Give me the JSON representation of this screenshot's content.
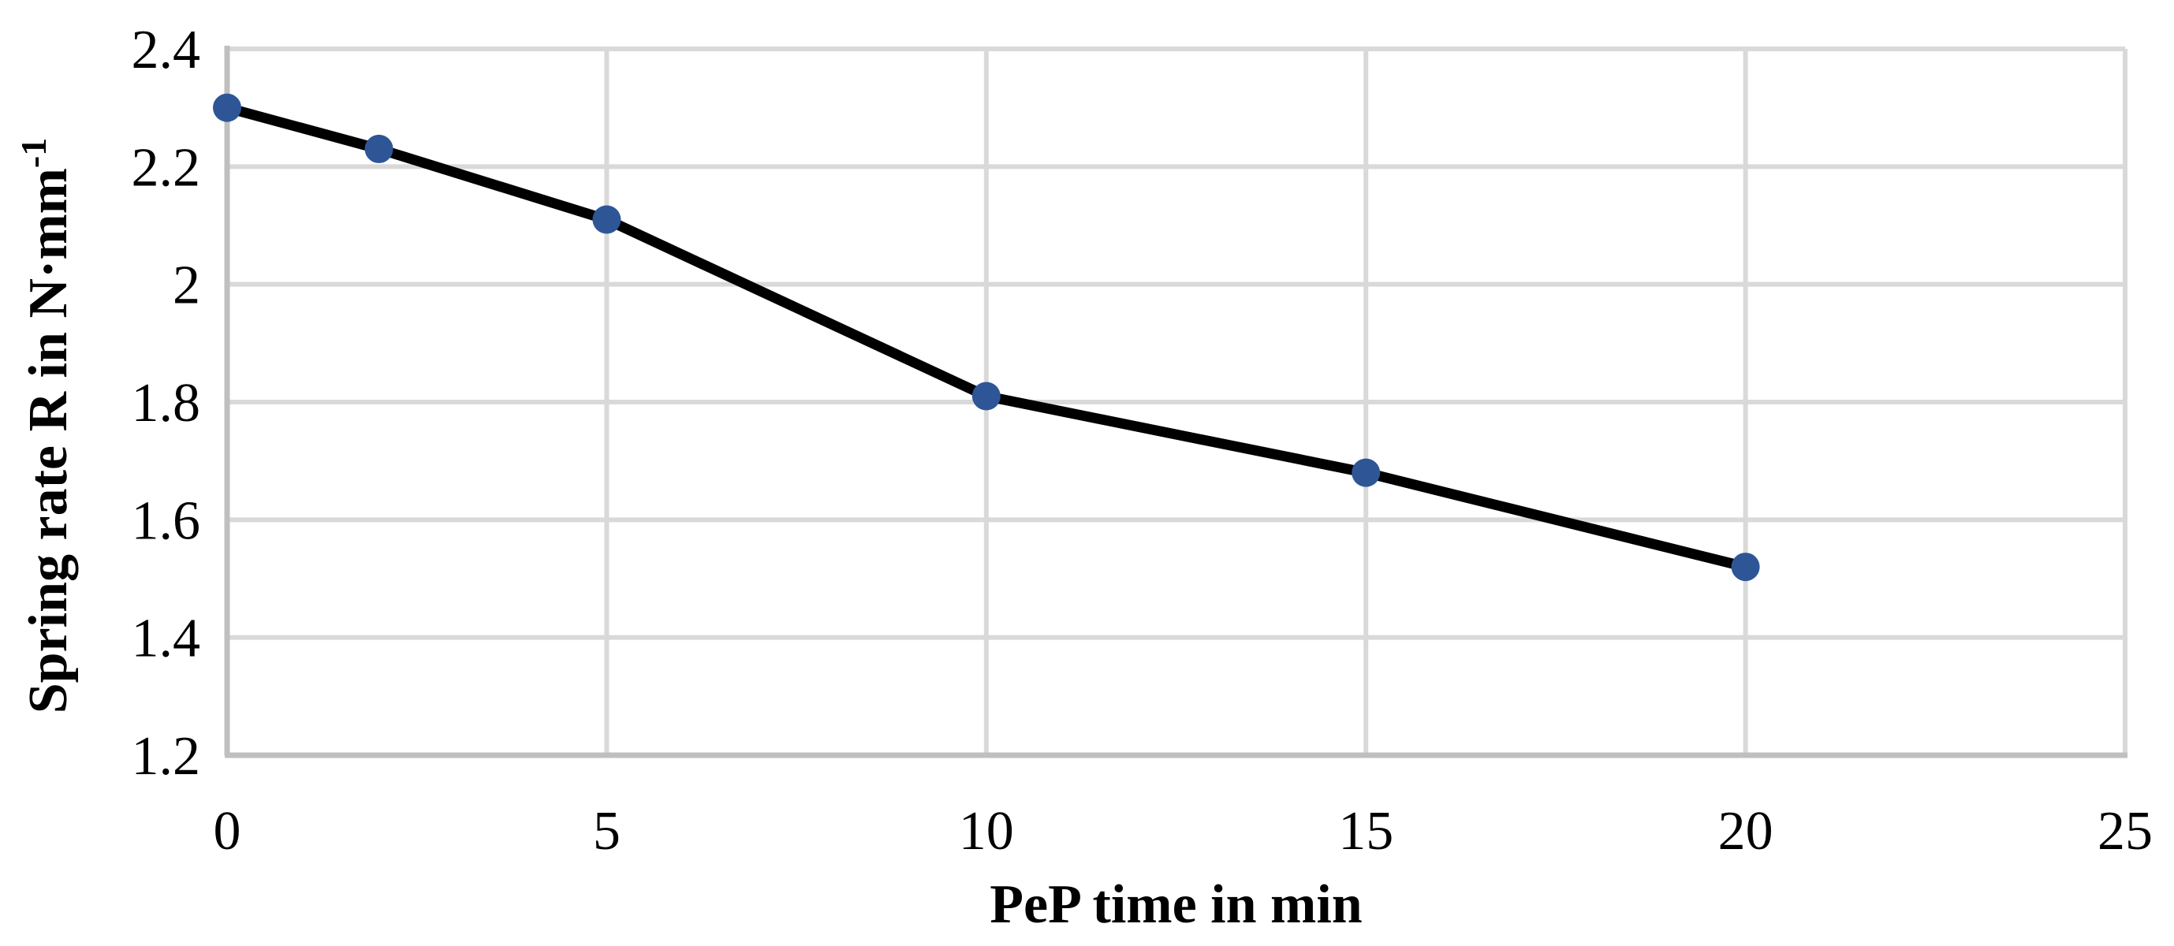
{
  "chart_data": {
    "type": "line",
    "title": "",
    "xlabel": "PeP time in min",
    "ylabel": "Spring rate R in N·mm⁻¹",
    "ylabel_parts": {
      "base": "Spring rate R in N·mm",
      "superscript": "-1"
    },
    "x": [
      0,
      2,
      5,
      10,
      15,
      20
    ],
    "y": [
      2.3,
      2.23,
      2.11,
      1.81,
      1.68,
      1.52
    ],
    "series_name": "Spring rate R",
    "xlim": [
      0,
      25
    ],
    "ylim": [
      1.2,
      2.4
    ],
    "xticks": [
      0,
      5,
      10,
      15,
      20,
      25
    ],
    "xtick_labels": [
      "0",
      "5",
      "10",
      "15",
      "20",
      "25"
    ],
    "yticks": [
      2.4,
      2.2,
      2.0,
      1.8,
      1.6,
      1.4,
      1.2
    ],
    "ytick_labels": [
      "2.4",
      "2.2",
      "2",
      "1.8",
      "1.6",
      "1.4",
      "1.2"
    ],
    "grid": true,
    "legend_visible": false,
    "colors": {
      "marker": "#2E5696",
      "line": "#000000",
      "gridline": "#D9D9D9",
      "axis": "#BFBFBF",
      "text": "#000000",
      "background": "#FFFFFF"
    }
  }
}
